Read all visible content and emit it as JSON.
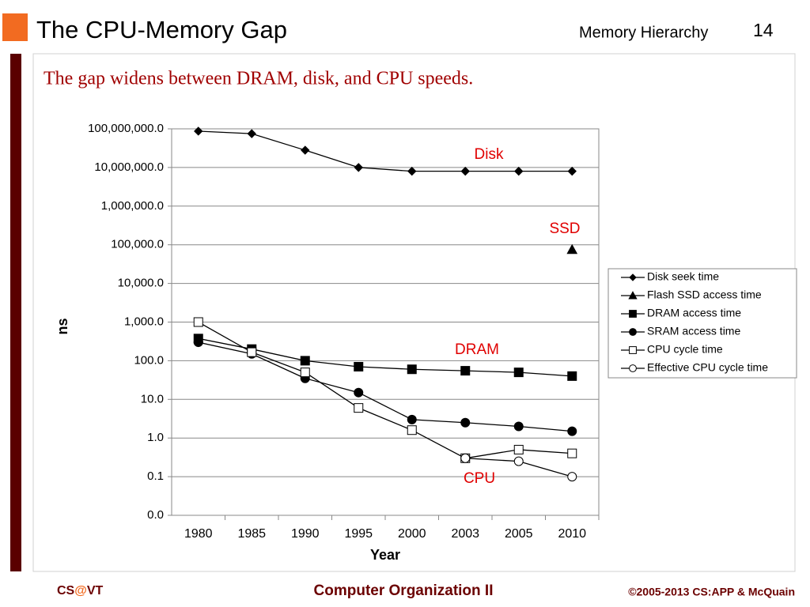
{
  "header": {
    "title": "The CPU-Memory Gap",
    "section": "Memory Hierarchy",
    "page": "14"
  },
  "subtitle": "The gap widens between DRAM, disk, and CPU speeds.",
  "footer": {
    "left": [
      "CS",
      "@",
      "VT"
    ],
    "center": "Computer Organization II",
    "right": "©2005-2013 CS:APP & McQuain"
  },
  "chart_data": {
    "type": "line",
    "log_scale": true,
    "grid": true,
    "legend": "right",
    "x_label": "Year",
    "y_label": "ns",
    "categories": [
      "1980",
      "1985",
      "1990",
      "1995",
      "2000",
      "2003",
      "2005",
      "2010"
    ],
    "series": [
      {
        "name": "Disk seek time",
        "color": "#000000",
        "marker": "diamond",
        "values": [
          87000000,
          75000000,
          28000000,
          10000000,
          8000000,
          8000000,
          8000000,
          8000000
        ]
      },
      {
        "name": "Flash SSD access time",
        "color": "#000000",
        "marker": "triangle",
        "values": [
          null,
          null,
          null,
          null,
          null,
          null,
          null,
          75000
        ]
      },
      {
        "name": "DRAM access time",
        "color": "#000000",
        "marker": "square",
        "values": [
          375,
          200,
          100,
          70,
          60,
          55,
          50,
          40
        ]
      },
      {
        "name": "SRAM access time",
        "color": "#000000",
        "marker": "circle",
        "values": [
          300,
          150,
          35,
          15,
          3,
          2.5,
          2,
          1.5
        ]
      },
      {
        "name": "CPU cycle time",
        "color": "#000000",
        "marker": "square-open",
        "values": [
          1000,
          166,
          50,
          6,
          1.6,
          0.3,
          0.5,
          0.4
        ]
      },
      {
        "name": "Effective CPU cycle time",
        "color": "#000000",
        "marker": "circle-open",
        "values": [
          null,
          null,
          null,
          null,
          null,
          0.3,
          0.25,
          0.1
        ]
      }
    ],
    "annotations": [
      "Disk",
      "SSD",
      "DRAM",
      "CPU"
    ],
    "annotation_color": "#e00000",
    "ylim": [
      0.01,
      100000000
    ],
    "yticks": [
      {
        "value": 0.01,
        "label": "0.0"
      },
      {
        "value": 0.1,
        "label": "0.1"
      },
      {
        "value": 1,
        "label": "1.0"
      },
      {
        "value": 10,
        "label": "10.0"
      },
      {
        "value": 100,
        "label": "100.0"
      },
      {
        "value": 1000,
        "label": "1,000.0"
      },
      {
        "value": 10000,
        "label": "10,000.0"
      },
      {
        "value": 100000,
        "label": "100,000.0"
      },
      {
        "value": 1000000,
        "label": "1,000,000.0"
      },
      {
        "value": 10000000,
        "label": "10,000,000.0"
      },
      {
        "value": 100000000,
        "label": "100,000,000.0"
      }
    ]
  }
}
